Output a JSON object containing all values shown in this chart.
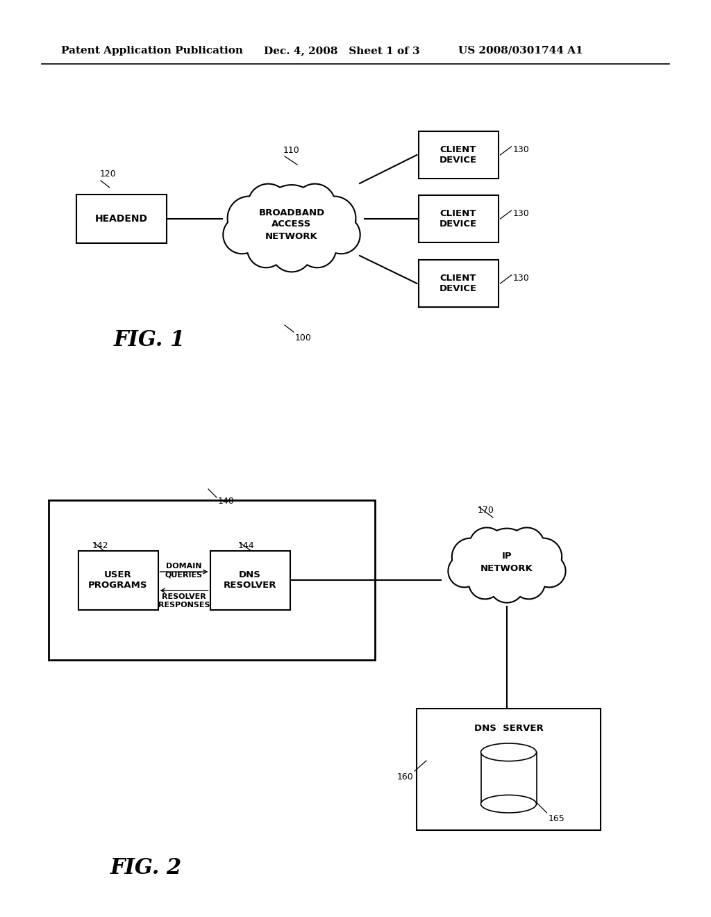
{
  "background_color": "#ffffff",
  "header_left": "Patent Application Publication",
  "header_mid": "Dec. 4, 2008   Sheet 1 of 3",
  "header_right": "US 2008/0301744 A1",
  "fig1_label": "FIG. 1",
  "fig1_ref": "100",
  "fig2_label": "FIG. 2",
  "fig1": {
    "headend_label": "HEADEND",
    "headend_ref": "120",
    "cloud_label_1": "BROADBAND",
    "cloud_label_2": "ACCESS",
    "cloud_label_3": "NETWORK",
    "cloud_ref": "110",
    "client_line1": "CLIENT",
    "client_line2": "DEVICE",
    "client_refs": [
      "130",
      "130",
      "130"
    ]
  },
  "fig2": {
    "outer_box_ref": "140",
    "user_programs_line1": "USER",
    "user_programs_line2": "PROGRAMS",
    "user_programs_ref": "142",
    "dns_resolver_line1": "DNS",
    "dns_resolver_line2": "RESOLVER",
    "dns_resolver_ref": "144",
    "domain_queries_line1": "DOMAIN",
    "domain_queries_line2": "QUERIES",
    "resolver_responses_line1": "RESOLVER",
    "resolver_responses_line2": "RESPONSES",
    "ip_network_line1": "IP",
    "ip_network_line2": "NETWORK",
    "ip_network_ref": "170",
    "dns_server_label": "DNS  SERVER",
    "dns_server_ref": "160",
    "cylinder_ref": "165"
  }
}
